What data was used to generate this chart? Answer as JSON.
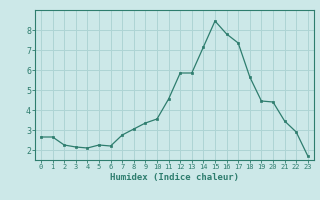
{
  "x": [
    0,
    1,
    2,
    3,
    4,
    5,
    6,
    7,
    8,
    9,
    10,
    11,
    12,
    13,
    14,
    15,
    16,
    17,
    18,
    19,
    20,
    21,
    22,
    23
  ],
  "y": [
    2.65,
    2.65,
    2.25,
    2.15,
    2.1,
    2.25,
    2.2,
    2.75,
    3.05,
    3.35,
    3.55,
    4.55,
    5.85,
    5.85,
    7.15,
    8.45,
    7.8,
    7.35,
    5.65,
    4.45,
    4.4,
    3.45,
    2.9,
    1.7
  ],
  "line_color": "#2e7d6e",
  "marker": "s",
  "marker_size": 2.0,
  "bg_color": "#cce8e8",
  "grid_color": "#aed4d4",
  "xlabel": "Humidex (Indice chaleur)",
  "ylim": [
    1.5,
    9.0
  ],
  "xlim": [
    -0.5,
    23.5
  ],
  "yticks": [
    2,
    3,
    4,
    5,
    6,
    7,
    8
  ],
  "xticks": [
    0,
    1,
    2,
    3,
    4,
    5,
    6,
    7,
    8,
    9,
    10,
    11,
    12,
    13,
    14,
    15,
    16,
    17,
    18,
    19,
    20,
    21,
    22,
    23
  ],
  "tick_color": "#2e7d6e",
  "label_color": "#2e7d6e",
  "axis_color": "#2e7d6e",
  "xtick_fontsize": 5.0,
  "ytick_fontsize": 6.0,
  "xlabel_fontsize": 6.5
}
